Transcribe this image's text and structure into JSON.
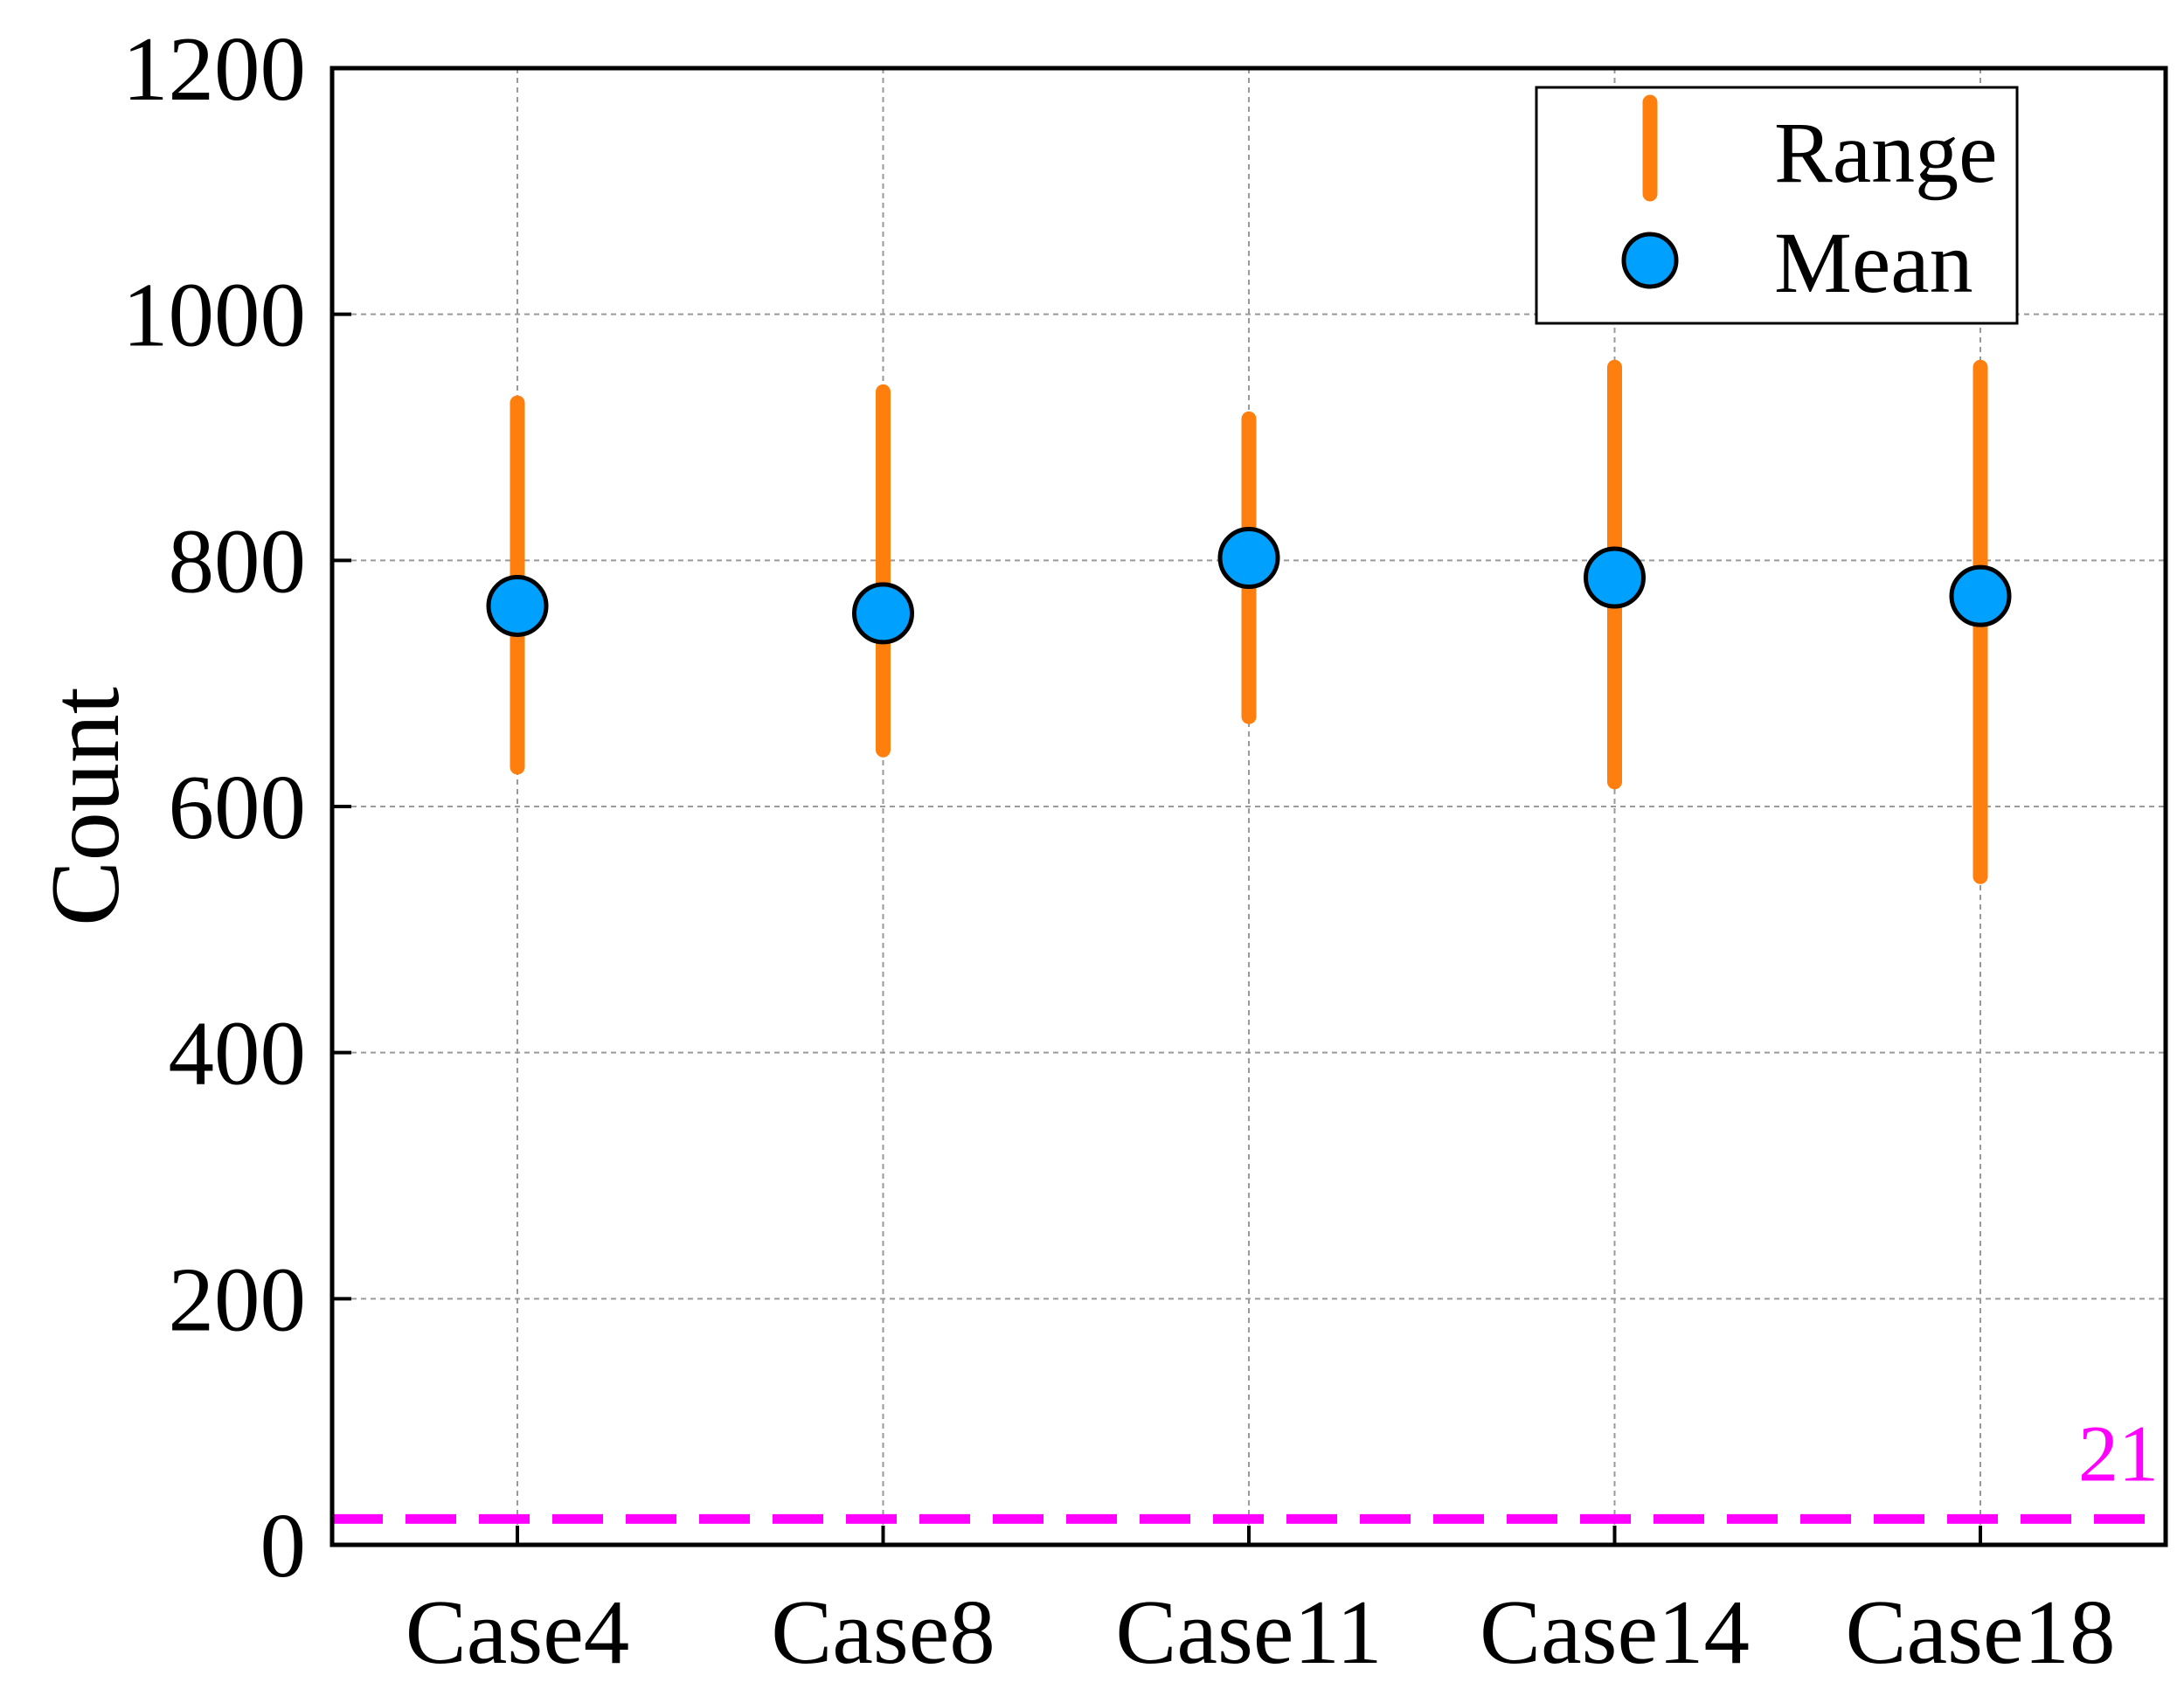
{
  "chart_data": {
    "type": "scatter",
    "title": "",
    "xlabel": "",
    "ylabel": "Count",
    "ylim": [
      0,
      1200
    ],
    "yticks": [
      0,
      200,
      400,
      600,
      800,
      1000,
      1200
    ],
    "grid": true,
    "categories": [
      "Case4",
      "Case8",
      "Case11",
      "Case14",
      "Case18"
    ],
    "series": [
      {
        "name": "Range",
        "kind": "range",
        "color": "#ff7f0e",
        "min": [
          632,
          646,
          673,
          620,
          543
        ],
        "max": [
          928,
          937,
          915,
          957,
          957
        ]
      },
      {
        "name": "Mean",
        "kind": "marker",
        "color": "#00a0ff",
        "edge_color": "#000000",
        "values": [
          763,
          757,
          802,
          786,
          771
        ]
      }
    ],
    "reference_line": {
      "value": 21,
      "label": "21",
      "color": "#ff00ff",
      "style": "dashed"
    },
    "legend": {
      "placement": "top-right",
      "entries": [
        "Range",
        "Mean"
      ]
    }
  }
}
